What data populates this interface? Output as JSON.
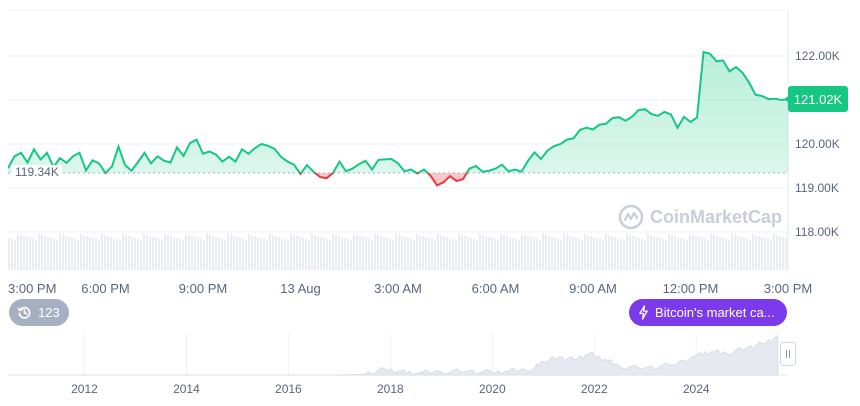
{
  "chart_data": [
    {
      "type": "area",
      "x_ticks": [
        "3:00 PM",
        "6:00 PM",
        "9:00 PM",
        "13 Aug",
        "3:00 AM",
        "6:00 AM",
        "9:00 AM",
        "12:00 PM",
        "3:00 PM"
      ],
      "y_ticks": [
        "122.00K",
        "121.00K",
        "120.00K",
        "119.00K",
        "118.00K"
      ],
      "y_tick_values": [
        122000,
        121000,
        120000,
        119000,
        118000
      ],
      "ylim": [
        117500,
        122900
      ],
      "xlim_hours": [
        0,
        24
      ],
      "baseline_label": "119.34K",
      "baseline_value": 119340,
      "current_price_label": "121.02K",
      "current_price_value": 121020,
      "up_color": "#16c784",
      "down_color": "#ea3943",
      "series": [
        {
          "values_hours": [
            0,
            0.2,
            0.4,
            0.6,
            0.8,
            1.0,
            1.2,
            1.4,
            1.6,
            1.8,
            2.0,
            2.2,
            2.4,
            2.6,
            2.8,
            3.0,
            3.2,
            3.4,
            3.6,
            3.8,
            4.0,
            4.2,
            4.4,
            4.6,
            4.8,
            5.0,
            5.2,
            5.4,
            5.6,
            5.8,
            6.0,
            6.2,
            6.4,
            6.6,
            6.8,
            7.0,
            7.2,
            7.4,
            7.6,
            7.8,
            8.0,
            8.2,
            8.4,
            8.6,
            8.8,
            9.0,
            9.2,
            9.4,
            9.6,
            9.8,
            10.0,
            10.2,
            10.4,
            10.6,
            10.8,
            11.0,
            11.2,
            11.4,
            11.6,
            11.8,
            12.0,
            12.2,
            12.4,
            12.6,
            12.8,
            13.0,
            13.2,
            13.4,
            13.6,
            13.8,
            14.0,
            14.2,
            14.4,
            14.6,
            14.8,
            15.0,
            15.2,
            15.4,
            15.6,
            15.8,
            16.0,
            16.2,
            16.4,
            16.6,
            16.8,
            17.0,
            17.2,
            17.4,
            17.6,
            17.8,
            18.0,
            18.2,
            18.4,
            18.6,
            18.8,
            19.0,
            19.2,
            19.4,
            19.6,
            19.8,
            20.0,
            20.2,
            20.4,
            20.6,
            20.8,
            21.0,
            21.2,
            21.4,
            21.6,
            21.8,
            22.0,
            22.2,
            22.4,
            22.6,
            22.8,
            23.0,
            23.2,
            23.4,
            23.6,
            23.8,
            24.0
          ],
          "values": [
            119450,
            119720,
            119800,
            119580,
            119880,
            119650,
            119800,
            119480,
            119680,
            119570,
            119720,
            119800,
            119400,
            119630,
            119560,
            119340,
            119490,
            119940,
            119520,
            119390,
            119590,
            119800,
            119560,
            119720,
            119620,
            119580,
            119920,
            119730,
            120020,
            120100,
            119780,
            119830,
            119760,
            119600,
            119710,
            119600,
            119880,
            119780,
            119910,
            120000,
            119960,
            119890,
            119710,
            119600,
            119530,
            119320,
            119520,
            119370,
            119250,
            119220,
            119340,
            119600,
            119380,
            119440,
            119540,
            119620,
            119420,
            119640,
            119650,
            119660,
            119560,
            119380,
            119420,
            119330,
            119420,
            119280,
            119060,
            119130,
            119270,
            119160,
            119200,
            119440,
            119500,
            119370,
            119390,
            119440,
            119530,
            119380,
            119420,
            119370,
            119620,
            119810,
            119660,
            119850,
            119950,
            120000,
            120100,
            120130,
            120320,
            120370,
            120330,
            120440,
            120460,
            120590,
            120610,
            120530,
            120620,
            120770,
            120790,
            120680,
            120640,
            120730,
            120670,
            120370,
            120620,
            120500,
            120600,
            122090,
            122050,
            121880,
            121900,
            121650,
            121750,
            121620,
            121400,
            121120,
            121090,
            121020,
            121030,
            121000,
            121020
          ]
        }
      ],
      "volume_color": "#e9ecf1"
    },
    {
      "type": "area",
      "x_ticks": [
        "2012",
        "2014",
        "2016",
        "2018",
        "2020",
        "2022",
        "2024"
      ],
      "x_tick_values": [
        2012,
        2014,
        2016,
        2018,
        2020,
        2022,
        2024
      ],
      "xlim": [
        2010.5,
        2025.8
      ],
      "years": [
        2010.5,
        2011,
        2011.5,
        2012,
        2012.5,
        2013,
        2013.5,
        2014,
        2014.5,
        2015,
        2015.5,
        2016,
        2016.5,
        2017,
        2017.5,
        2017.9,
        2018.2,
        2018.5,
        2019,
        2019.5,
        2020,
        2020.3,
        2020.8,
        2021.0,
        2021.3,
        2021.6,
        2021.9,
        2022.2,
        2022.5,
        2023,
        2023.5,
        2024,
        2024.3,
        2024.6,
        2025,
        2025.3,
        2025.6
      ],
      "values": [
        0,
        0,
        0,
        0,
        0,
        0,
        0,
        0,
        0,
        0,
        0,
        0,
        0,
        0,
        0.02,
        0.15,
        0.08,
        0.05,
        0.08,
        0.1,
        0.07,
        0.1,
        0.15,
        0.35,
        0.45,
        0.4,
        0.55,
        0.4,
        0.22,
        0.18,
        0.25,
        0.5,
        0.6,
        0.55,
        0.7,
        0.8,
        1.0
      ],
      "area_color": "#e6e9ef"
    }
  ],
  "history_button": {
    "count": "123"
  },
  "event_tag": {
    "label": "Bitcoin's market ca..."
  },
  "watermark": {
    "text": "CoinMarketCap"
  }
}
